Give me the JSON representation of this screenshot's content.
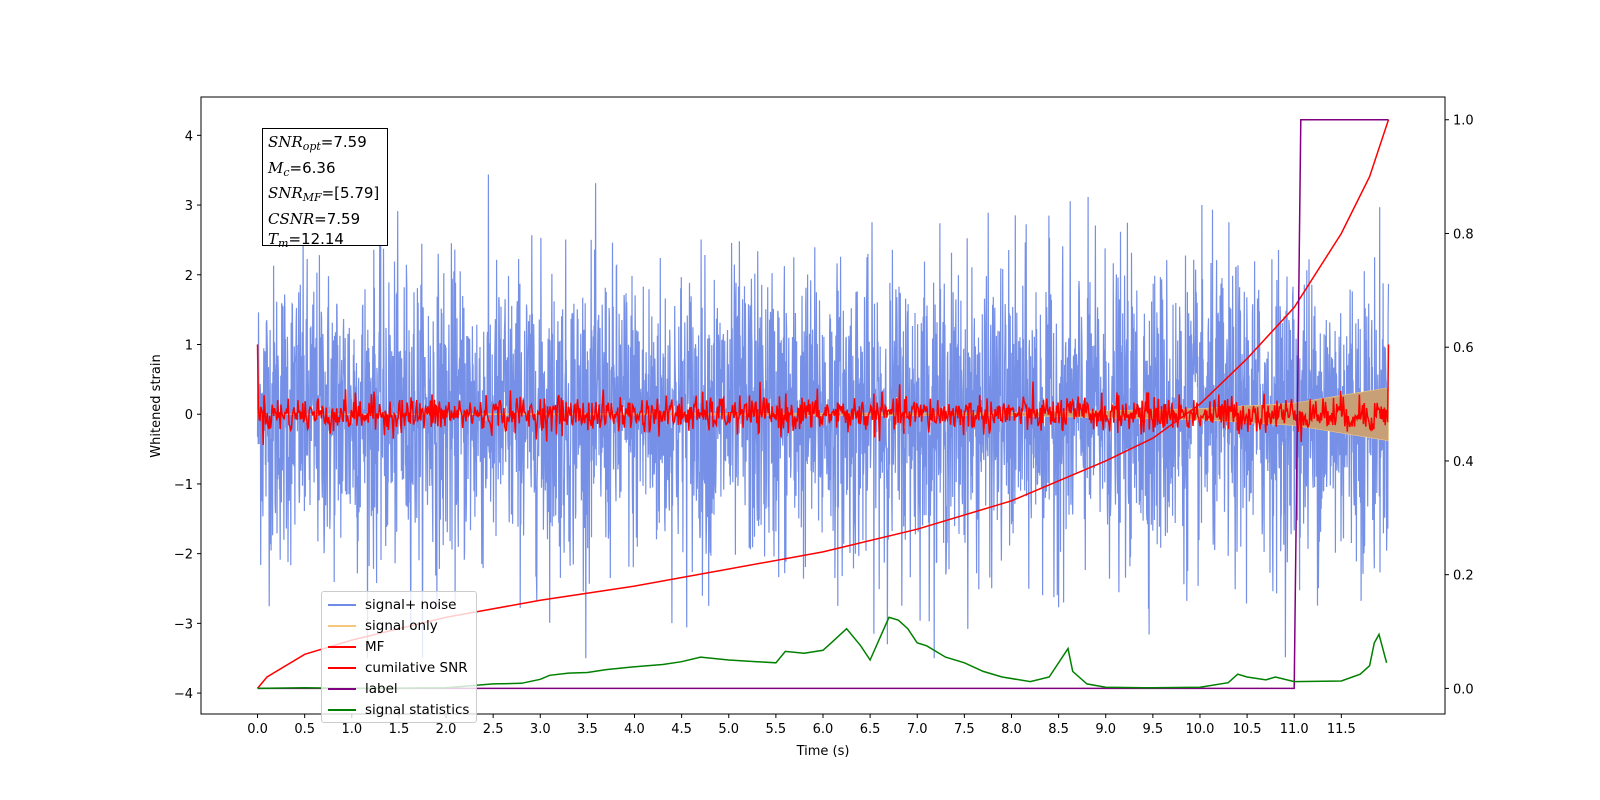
{
  "chart_data": {
    "type": "line",
    "xlabel": "Time (s)",
    "ylabel": "Whitened strain",
    "xlim": [
      -0.6,
      12.6
    ],
    "ylim": [
      -4.3,
      4.55
    ],
    "y2lim": [
      -0.045,
      1.04
    ],
    "x_ticks": [
      "0.0",
      "0.5",
      "1.0",
      "1.5",
      "2.0",
      "2.5",
      "3.0",
      "3.5",
      "4.0",
      "4.5",
      "5.0",
      "5.5",
      "6.0",
      "6.5",
      "7.0",
      "7.5",
      "8.0",
      "8.5",
      "9.0",
      "9.5",
      "10.0",
      "10.5",
      "11.0",
      "11.5"
    ],
    "y_ticks": [
      "−4",
      "−3",
      "−2",
      "−1",
      "0",
      "1",
      "2",
      "3",
      "4"
    ],
    "y2_ticks": [
      "0.0",
      "0.2",
      "0.4",
      "0.6",
      "0.8",
      "1.0"
    ],
    "annotation": {
      "snr_opt": {
        "sym": "SNR",
        "sub": "opt",
        "val": "=7.59"
      },
      "mc": {
        "sym": "M",
        "sub": "c",
        "val": "=6.36"
      },
      "snr_mf": {
        "sym": "SNR",
        "sub": "MF",
        "val": "=[5.79]"
      },
      "csnr": {
        "sym": "CSNR",
        "sub": "",
        "val": "=7.59"
      },
      "tm": {
        "sym": "T",
        "sub": "m",
        "val": "=12.14"
      }
    },
    "legend": [
      {
        "label": "signal+ noise",
        "color": "#6f8ce6"
      },
      {
        "label": "signal only",
        "color": "#f5c77e"
      },
      {
        "label": "MF",
        "color": "#ff0000"
      },
      {
        "label": "cumilative SNR",
        "color": "#ff0000"
      },
      {
        "label": "label",
        "color": "#800080"
      },
      {
        "label": "signal statistics",
        "color": "#008000"
      }
    ],
    "series": [
      {
        "name": "signal+ noise",
        "axis": "left",
        "description_range": [
          -3.5,
          4.2
        ],
        "t_range": [
          0,
          12
        ]
      },
      {
        "name": "signal only",
        "axis": "left",
        "envelope": {
          "t": [
            0,
            8,
            10,
            11,
            12
          ],
          "amp": [
            0.0,
            0.02,
            0.08,
            0.16,
            0.38
          ]
        }
      },
      {
        "name": "MF",
        "axis": "left",
        "mean": 0,
        "std": 0.13,
        "start_value": 1.0,
        "end_value": 1.0
      },
      {
        "name": "cumilative SNR",
        "axis": "right",
        "x": [
          0.0,
          0.1,
          0.5,
          1.0,
          2.0,
          3.0,
          4.0,
          5.0,
          6.0,
          7.0,
          8.0,
          9.0,
          9.5,
          10.0,
          10.5,
          11.0,
          11.5,
          11.8,
          12.0
        ],
        "y": [
          0.0,
          0.02,
          0.06,
          0.085,
          0.125,
          0.155,
          0.18,
          0.21,
          0.24,
          0.28,
          0.33,
          0.4,
          0.44,
          0.5,
          0.58,
          0.67,
          0.8,
          0.9,
          1.0
        ]
      },
      {
        "name": "label",
        "axis": "right",
        "x": [
          0.0,
          11.0,
          11.07,
          12.0
        ],
        "y": [
          0.0,
          0.0,
          1.0,
          1.0
        ]
      },
      {
        "name": "signal statistics",
        "axis": "right",
        "x": [
          0.0,
          0.5,
          1.0,
          2.0,
          2.5,
          2.8,
          3.0,
          3.1,
          3.3,
          3.5,
          3.7,
          4.0,
          4.3,
          4.5,
          4.7,
          5.0,
          5.3,
          5.5,
          5.6,
          5.8,
          6.0,
          6.1,
          6.25,
          6.4,
          6.5,
          6.7,
          6.8,
          6.9,
          7.0,
          7.1,
          7.3,
          7.5,
          7.7,
          7.9,
          8.2,
          8.4,
          8.6,
          8.65,
          8.8,
          9.0,
          9.5,
          10.0,
          10.3,
          10.4,
          10.5,
          10.7,
          10.8,
          11.0,
          11.5,
          11.7,
          11.8,
          11.85,
          11.9,
          11.98
        ],
        "y": [
          0.0,
          0.001,
          0.0,
          0.001,
          0.008,
          0.009,
          0.016,
          0.023,
          0.027,
          0.028,
          0.033,
          0.038,
          0.042,
          0.047,
          0.055,
          0.05,
          0.047,
          0.045,
          0.065,
          0.062,
          0.067,
          0.082,
          0.105,
          0.075,
          0.05,
          0.125,
          0.12,
          0.105,
          0.08,
          0.075,
          0.055,
          0.045,
          0.03,
          0.02,
          0.012,
          0.02,
          0.07,
          0.03,
          0.008,
          0.002,
          0.001,
          0.002,
          0.01,
          0.025,
          0.02,
          0.015,
          0.02,
          0.012,
          0.013,
          0.025,
          0.04,
          0.08,
          0.095,
          0.045
        ]
      }
    ]
  }
}
